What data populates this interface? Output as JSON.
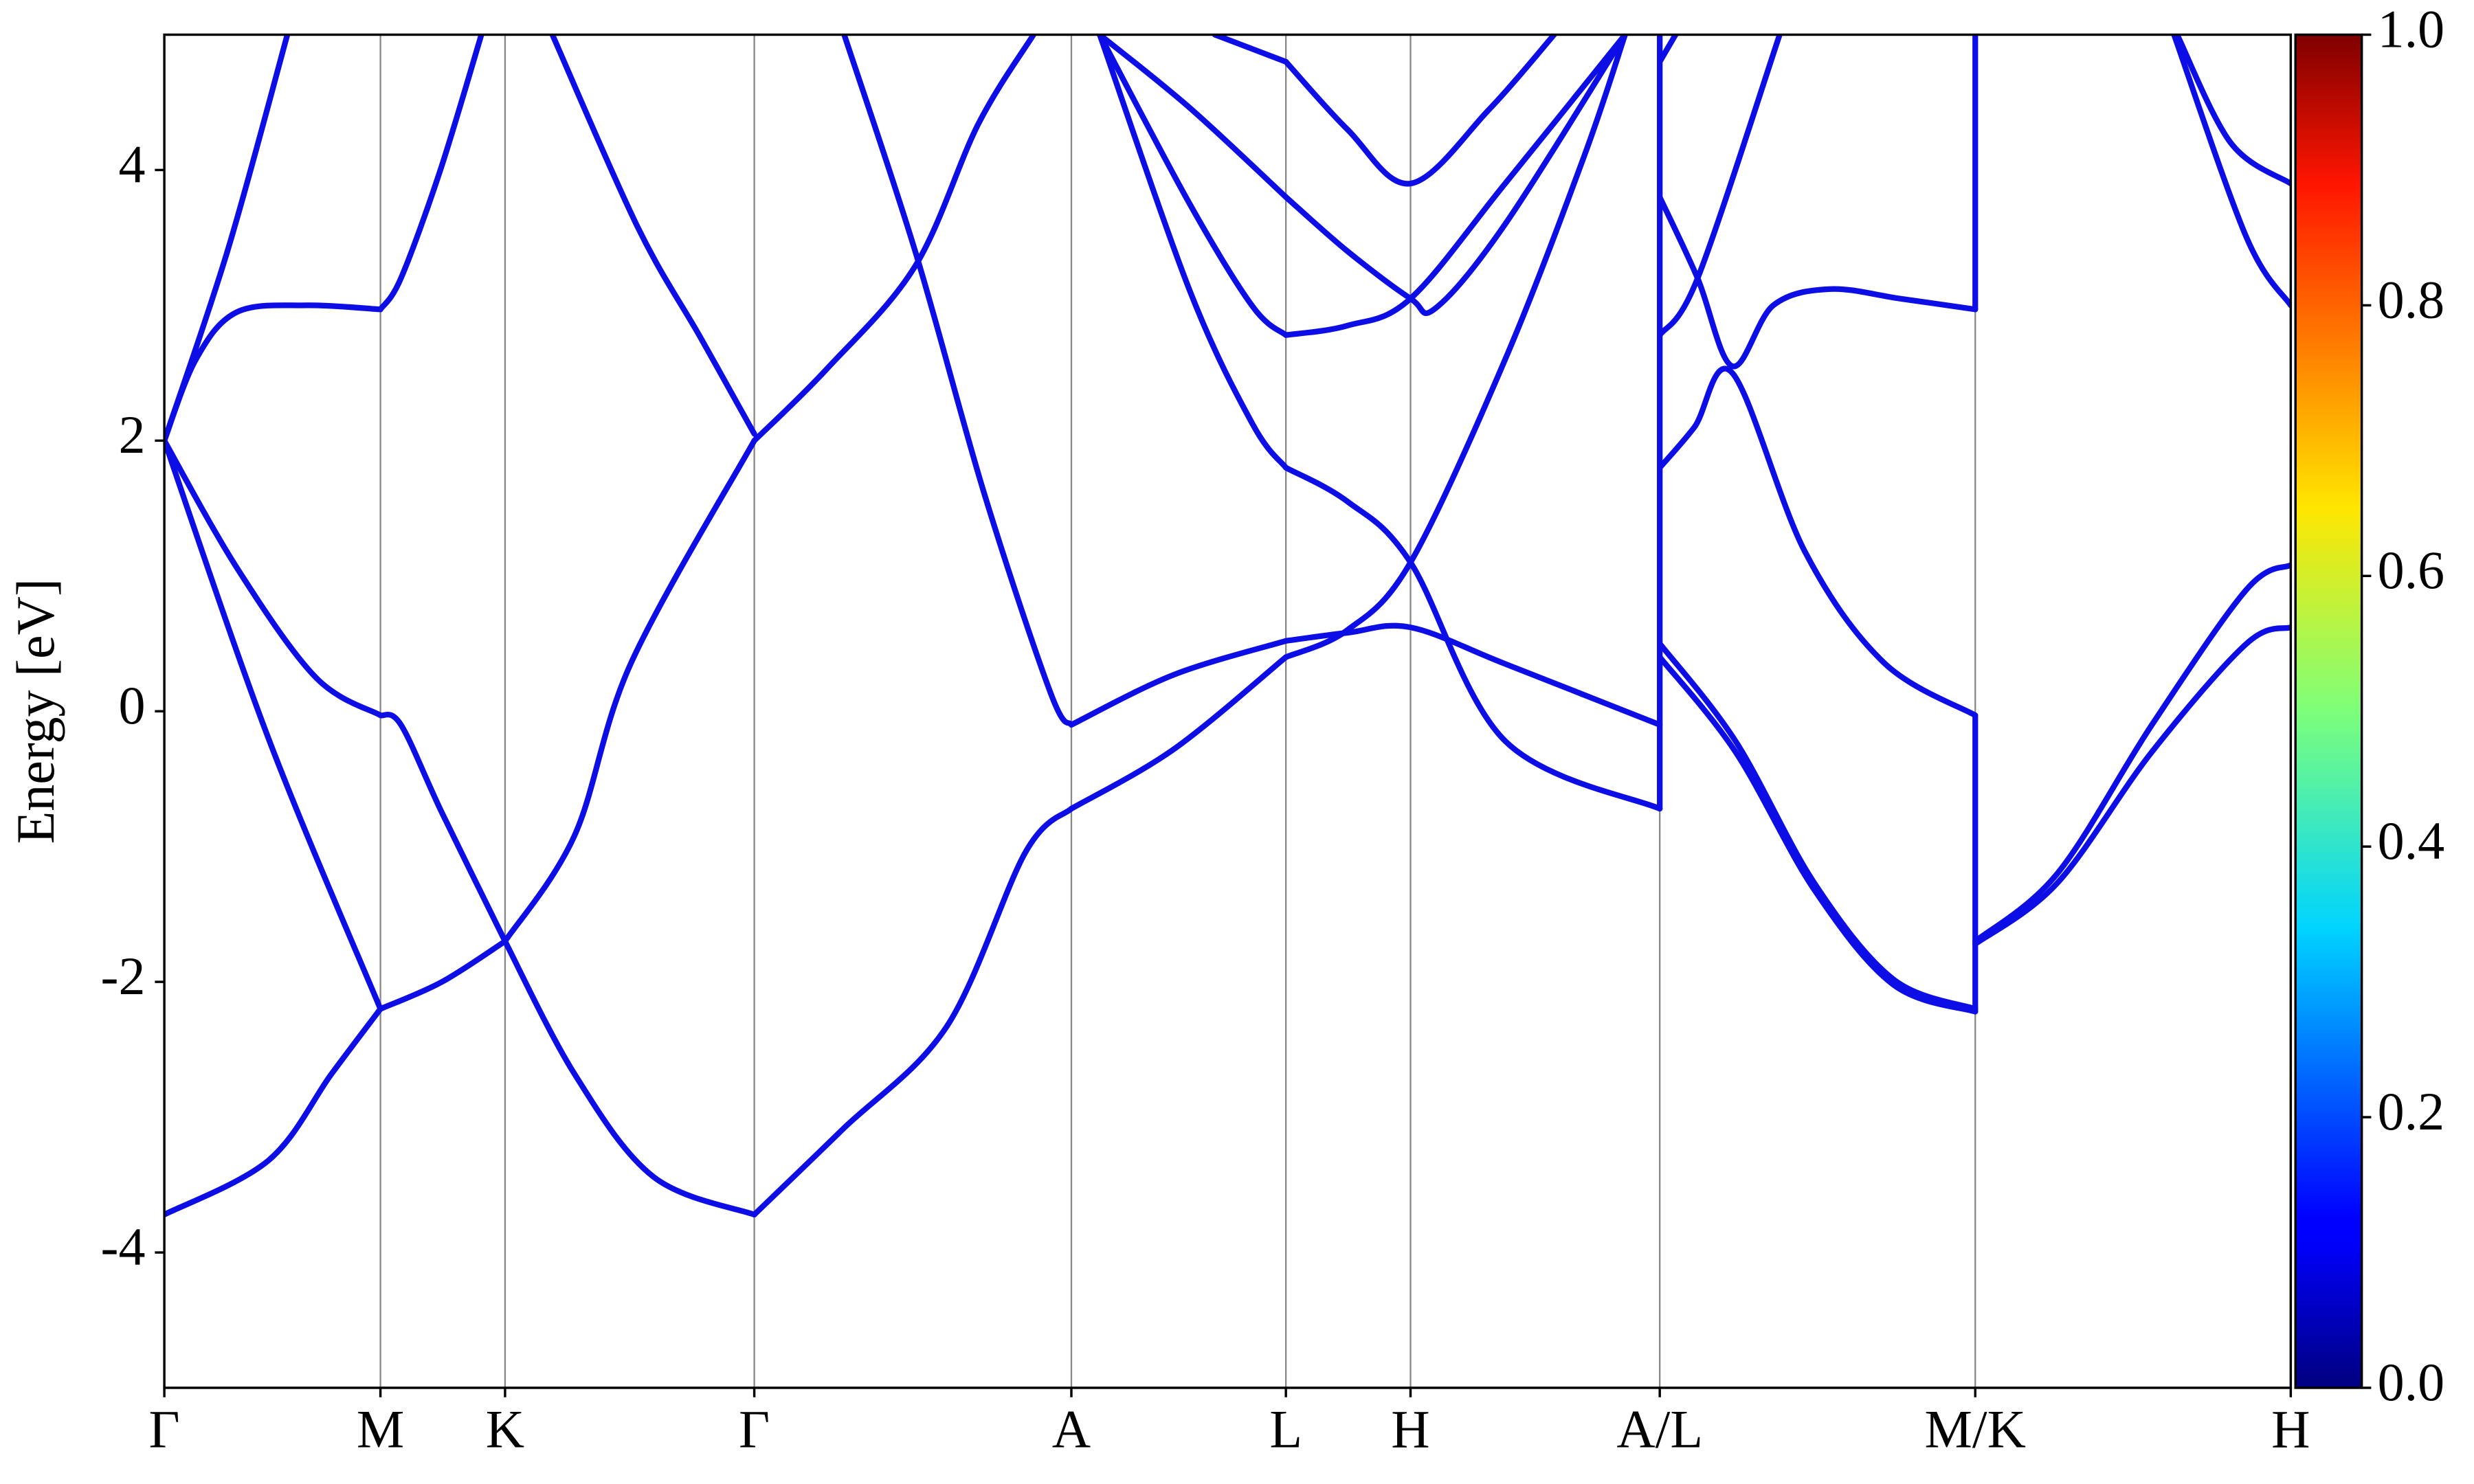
{
  "chart_data": {
    "type": "line",
    "y_label": "Energy [eV]",
    "color": "#0d0de6",
    "xlim": [
      0,
      1348
    ],
    "xticks": [
      {
        "value": 0,
        "label": "Γ"
      },
      {
        "value": 137,
        "label": "M"
      },
      {
        "value": 216,
        "label": "K"
      },
      {
        "value": 374,
        "label": "Γ"
      },
      {
        "value": 575,
        "label": "A"
      },
      {
        "value": 711,
        "label": "L"
      },
      {
        "value": 790,
        "label": "H"
      },
      {
        "value": 948,
        "label": "A/L"
      },
      {
        "value": 1148,
        "label": "M/K"
      },
      {
        "value": 1348,
        "label": "H"
      }
    ],
    "grid": true,
    "ylim": [
      -5,
      5
    ],
    "yticks": [
      -4,
      -2,
      0,
      2,
      4
    ],
    "colorbar": {
      "lim": [
        0,
        1
      ],
      "ticks": [
        {
          "value": 0,
          "label": "0.0"
        },
        0.2,
        0.4,
        0.6,
        0.8,
        {
          "value": 1,
          "label": "1.0"
        }
      ]
    },
    "series": [
      {
        "x": [
          0,
          66,
          106,
          137
        ],
        "values": [
          -3.72,
          -3.32,
          -2.68,
          -2.2
        ]
      },
      {
        "x": [
          0,
          66,
          137
        ],
        "values": [
          2,
          -0.2,
          -2.2
        ]
      },
      {
        "x": [
          0,
          46,
          96,
          137
        ],
        "values": [
          2,
          1.06,
          0.25,
          -0.03
        ]
      },
      {
        "x": [
          0,
          20,
          46,
          90,
          137
        ],
        "values": [
          2,
          2.6,
          2.95,
          3.0,
          2.97
        ]
      },
      {
        "x": [
          0,
          40,
          78
        ],
        "values": [
          2,
          3.4,
          5
        ]
      },
      {
        "x": [
          137,
          176,
          216
        ],
        "values": [
          -2.2,
          -2.0,
          -1.7
        ]
      },
      {
        "x": [
          137,
          150,
          176,
          216
        ],
        "values": [
          -0.03,
          -0.1,
          -0.75,
          -1.7
        ]
      },
      {
        "x": [
          137,
          150,
          175,
          201
        ],
        "values": [
          2.97,
          3.2,
          4.0,
          5
        ]
      },
      {
        "x": [
          216,
          260,
          310,
          374
        ],
        "values": [
          -1.7,
          -2.68,
          -3.44,
          -3.72
        ]
      },
      {
        "x": [
          216,
          260,
          296,
          374
        ],
        "values": [
          -1.7,
          -0.92,
          0.36,
          2.0
        ]
      },
      {
        "x": [
          246,
          300,
          340,
          374
        ],
        "values": [
          5,
          3.58,
          2.76,
          2.05
        ]
      },
      {
        "x": [
          374,
          420,
          476,
          516,
          551
        ],
        "values": [
          2.0,
          2.53,
          3.29,
          4.34,
          5
        ]
      },
      {
        "x": [
          374,
          430,
          496,
          546,
          575
        ],
        "values": [
          -3.72,
          -3.09,
          -2.33,
          -1.04,
          -0.72
        ]
      },
      {
        "x": [
          431,
          476,
          520,
          562,
          575
        ],
        "values": [
          5,
          3.4,
          1.6,
          0.13,
          -0.1
        ]
      },
      {
        "x": [
          575,
          640,
          711
        ],
        "values": [
          -0.1,
          0.27,
          0.52
        ]
      },
      {
        "x": [
          575,
          640,
          711
        ],
        "values": [
          -0.72,
          -0.28,
          0.4
        ]
      },
      {
        "x": [
          593,
          650,
          690,
          711
        ],
        "values": [
          5,
          3.11,
          2.12,
          1.8
        ]
      },
      {
        "x": [
          593,
          650,
          690,
          711
        ],
        "values": [
          5,
          3.75,
          2.99,
          2.78
        ]
      },
      {
        "x": [
          593,
          650,
          711
        ],
        "values": [
          5,
          4.46,
          3.8
        ]
      },
      {
        "x": [
          666,
          711
        ],
        "values": [
          5,
          4.8
        ]
      },
      {
        "x": [
          711,
          750,
          790,
          840,
          881
        ],
        "values": [
          4.8,
          4.3,
          3.9,
          4.45,
          5
        ]
      },
      {
        "x": [
          711,
          750,
          790,
          806,
          850,
          926
        ],
        "values": [
          3.8,
          3.4,
          3.05,
          2.98,
          3.6,
          5
        ]
      },
      {
        "x": [
          711,
          750,
          790,
          850,
          926
        ],
        "values": [
          2.78,
          2.85,
          3.05,
          3.9,
          5
        ]
      },
      {
        "x": [
          711,
          750,
          790,
          850,
          948
        ],
        "values": [
          1.8,
          1.55,
          1.1,
          -0.22,
          -0.72
        ]
      },
      {
        "x": [
          711,
          750,
          790,
          850,
          900,
          926
        ],
        "values": [
          0.4,
          0.6,
          1.1,
          2.6,
          4.1,
          5
        ]
      },
      {
        "x": [
          711,
          750,
          790,
          850,
          948
        ],
        "values": [
          0.52,
          0.58,
          0.62,
          0.35,
          -0.1
        ]
      },
      {
        "x": [
          948,
          948
        ],
        "values": [
          -0.72,
          5
        ]
      },
      {
        "x": [
          948,
          996,
          1046,
          1096,
          1148
        ],
        "values": [
          0.5,
          -0.22,
          -1.27,
          -1.98,
          -2.2
        ]
      },
      {
        "x": [
          948,
          996,
          1046,
          1096,
          1148
        ],
        "values": [
          0.4,
          -0.3,
          -1.32,
          -2.02,
          -2.22
        ]
      },
      {
        "x": [
          948,
          970,
          994,
          1040,
          1090,
          1148
        ],
        "values": [
          1.8,
          2.1,
          2.5,
          1.18,
          0.36,
          -0.03
        ]
      },
      {
        "x": [
          948,
          972,
          994,
          1020,
          1056,
          1100,
          1148
        ],
        "values": [
          3.8,
          3.2,
          2.55,
          3.0,
          3.12,
          3.05,
          2.97
        ]
      },
      {
        "x": [
          948,
          972,
          1024
        ],
        "values": [
          2.78,
          3.2,
          5
        ]
      },
      {
        "x": [
          948,
          958
        ],
        "values": [
          4.8,
          5
        ]
      },
      {
        "x": [
          1148,
          1148
        ],
        "values": [
          -2.22,
          -0.03
        ]
      },
      {
        "x": [
          1148,
          1148
        ],
        "values": [
          2.97,
          5
        ]
      },
      {
        "x": [
          1148,
          1200,
          1260,
          1320,
          1348
        ],
        "values": [
          -1.7,
          -1.2,
          -0.1,
          0.9,
          1.08
        ]
      },
      {
        "x": [
          1148,
          1200,
          1260,
          1320,
          1348
        ],
        "values": [
          -1.72,
          -1.27,
          -0.3,
          0.5,
          0.62
        ]
      },
      {
        "x": [
          1276,
          1310,
          1348
        ],
        "values": [
          5,
          4.2,
          3.9
        ]
      },
      {
        "x": [
          1274,
          1320,
          1348
        ],
        "values": [
          5,
          3.5,
          3.0
        ]
      }
    ]
  }
}
